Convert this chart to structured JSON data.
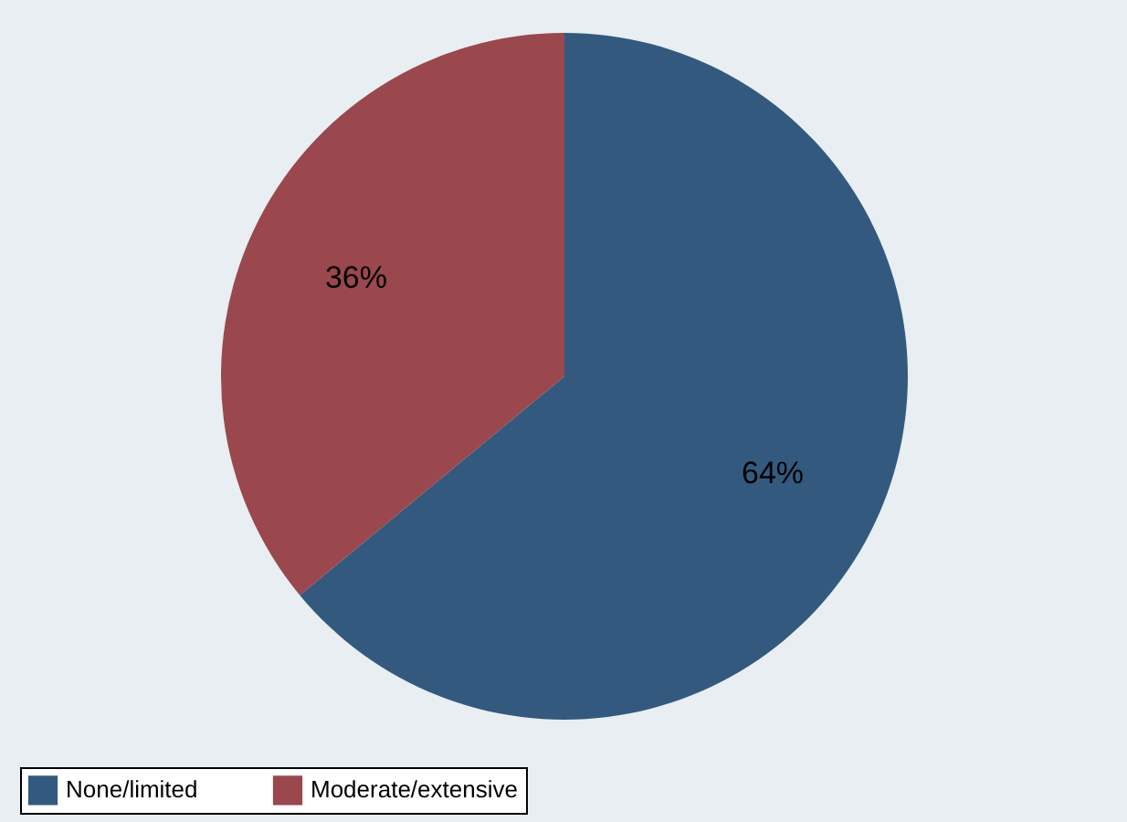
{
  "chart_data": {
    "type": "pie",
    "categories": [
      "None/limited",
      "Moderate/extensive"
    ],
    "values": [
      64,
      36
    ],
    "colors": [
      "#335a7e",
      "#9a474e"
    ],
    "value_labels": [
      "64%",
      "36%"
    ],
    "legend": "bottom"
  }
}
